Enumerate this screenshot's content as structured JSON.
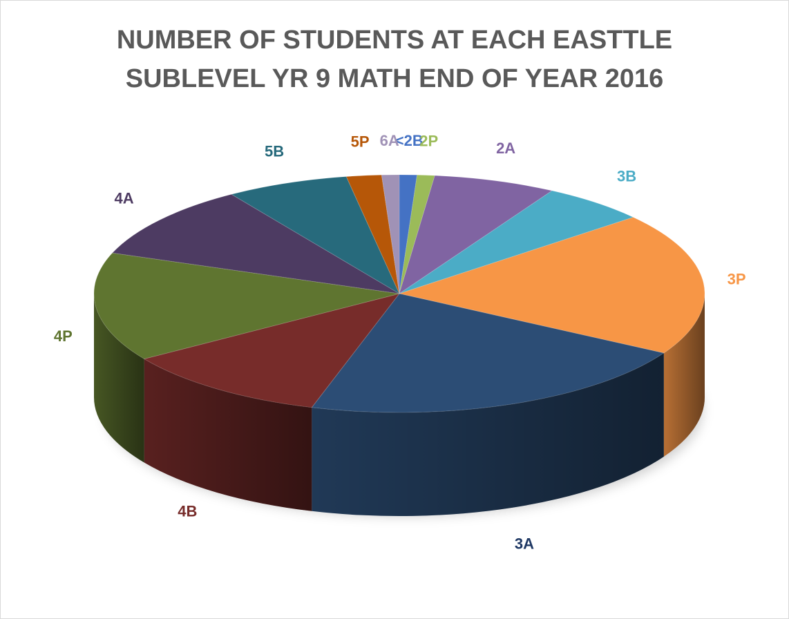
{
  "chart_data": {
    "type": "pie",
    "title_lines": [
      "NUMBER OF STUDENTS AT EACH EASTTLE",
      "SUBLEVEL YR 9 MATH END OF YEAR 2016"
    ],
    "categories": [
      "<2B",
      "2P",
      "2A",
      "3B",
      "3P",
      "3A",
      "4B",
      "4P",
      "4A",
      "5B",
      "5P",
      "6A"
    ],
    "values": [
      1,
      1,
      7,
      6,
      21,
      23,
      12,
      16,
      11,
      7,
      2,
      1
    ],
    "colors": [
      "#4472c4",
      "#9bbb59",
      "#8064a2",
      "#4bacc6",
      "#f79646",
      "#2c4d75",
      "#772c2a",
      "#5f7530",
      "#4d3b62",
      "#276a7c",
      "#b65708",
      "#a092b6"
    ],
    "label_colors": [
      "#4472c4",
      "#9bbb59",
      "#8064a2",
      "#4bacc6",
      "#f79646",
      "#1f3864",
      "#772c2a",
      "#5f7530",
      "#4d3b62",
      "#276a7c",
      "#b65708",
      "#a092b6"
    ],
    "legend": "none",
    "style": "3d"
  }
}
